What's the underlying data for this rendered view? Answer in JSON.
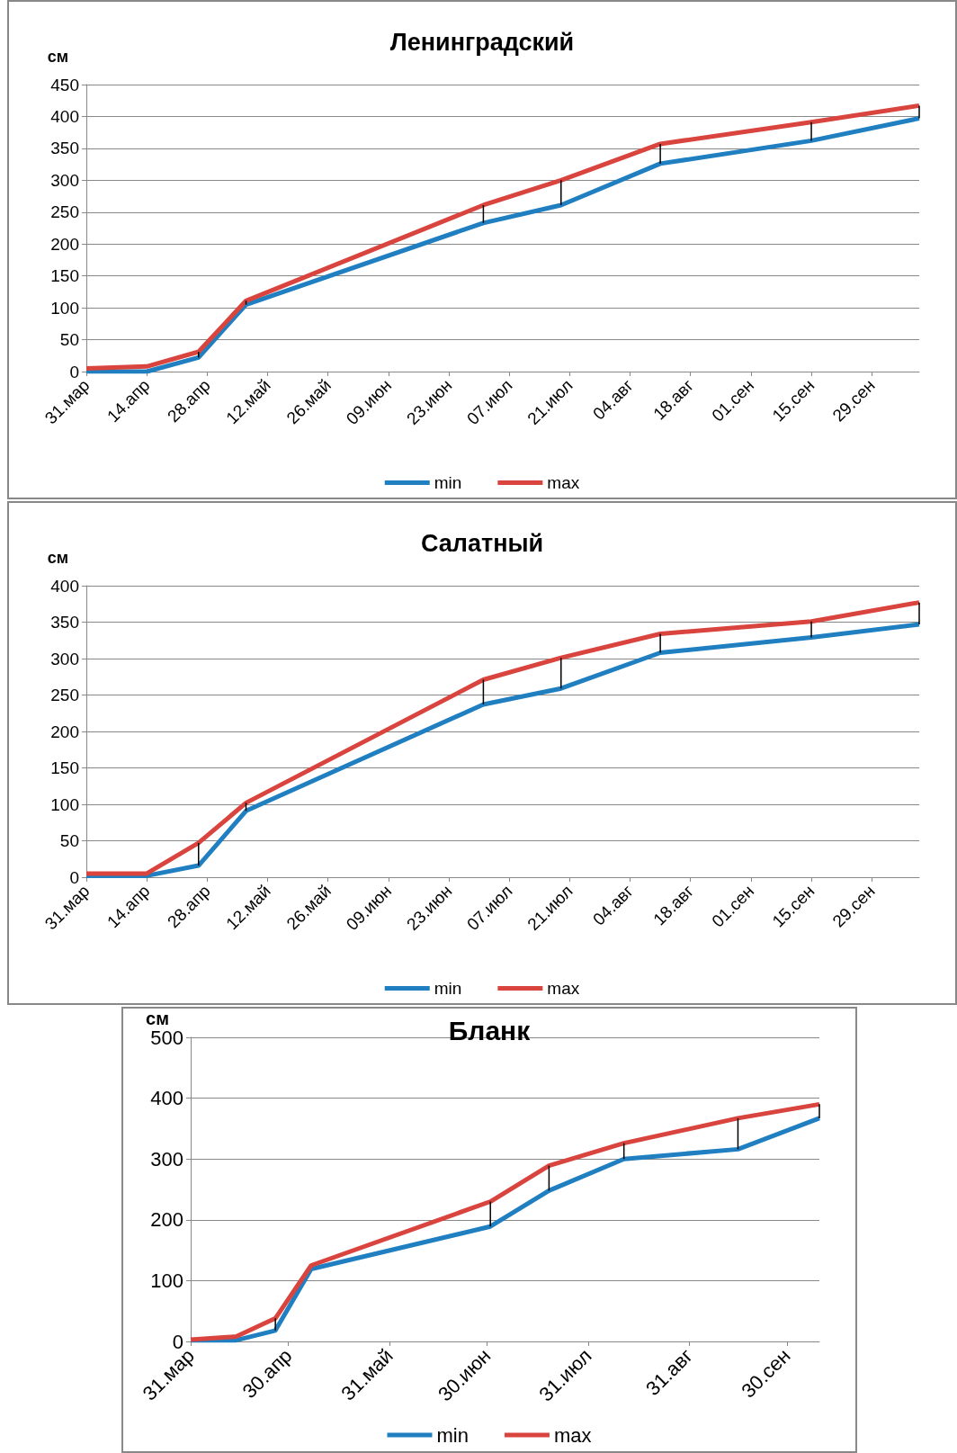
{
  "chart_data": [
    {
      "type": "line",
      "title": "Ленинградский",
      "ylabel": "см",
      "x": [
        "--03-31",
        "--04-14",
        "--04-26",
        "--05-07",
        "--07-01",
        "--07-19",
        "--08-11",
        "--09-15",
        "--10-10"
      ],
      "series": [
        {
          "name": "min",
          "color": "#1f7fc0",
          "values": [
            0,
            0,
            22,
            105,
            233,
            261,
            326,
            362,
            397
          ],
          "errors": [
            null,
            null,
            [
              22,
              31
            ],
            [
              105,
              111
            ],
            [
              233,
              261
            ],
            [
              261,
              300
            ],
            [
              326,
              357
            ],
            [
              362,
              391
            ],
            [
              397,
              417
            ]
          ]
        },
        {
          "name": "max",
          "color": "#d9453e",
          "values": [
            5,
            8,
            31,
            111,
            261,
            300,
            357,
            391,
            417
          ]
        }
      ],
      "xlim": [
        "--03-31",
        "--10-10"
      ],
      "xticks": [
        {
          "value": "--03-31",
          "label": "31.мар"
        },
        {
          "value": "--04-14",
          "label": "14.апр"
        },
        {
          "value": "--04-28",
          "label": "28.апр"
        },
        {
          "value": "--05-12",
          "label": "12.май"
        },
        {
          "value": "--05-26",
          "label": "26.май"
        },
        {
          "value": "--06-09",
          "label": "09.июн"
        },
        {
          "value": "--06-23",
          "label": "23.июн"
        },
        {
          "value": "--07-07",
          "label": "07.июл"
        },
        {
          "value": "--07-21",
          "label": "21.июл"
        },
        {
          "value": "--08-04",
          "label": "04.авг"
        },
        {
          "value": "--08-18",
          "label": "18.авг"
        },
        {
          "value": "--09-01",
          "label": "01.сен"
        },
        {
          "value": "--09-15",
          "label": "15.сен"
        },
        {
          "value": "--09-29",
          "label": "29.сен"
        }
      ],
      "ylim": [
        0,
        450
      ],
      "yticks": [
        0,
        50,
        100,
        150,
        200,
        250,
        300,
        350,
        400,
        450
      ],
      "grid": "y",
      "legend": "bottom",
      "marker": "none",
      "line_style": "solid"
    },
    {
      "type": "line",
      "title": "Салатный",
      "ylabel": "см",
      "x": [
        "--03-31",
        "--04-14",
        "--04-26",
        "--05-07",
        "--07-01",
        "--07-19",
        "--08-11",
        "--09-15",
        "--10-10"
      ],
      "series": [
        {
          "name": "min",
          "color": "#1f7fc0",
          "values": [
            2,
            2,
            16,
            91,
            237,
            259,
            308,
            329,
            347
          ],
          "errors": [
            null,
            null,
            [
              16,
              47
            ],
            [
              91,
              102
            ],
            [
              237,
              271
            ],
            [
              259,
              301
            ],
            [
              308,
              334
            ],
            [
              329,
              351
            ],
            [
              347,
              377
            ]
          ]
        },
        {
          "name": "max",
          "color": "#d9453e",
          "values": [
            5,
            5,
            47,
            102,
            271,
            301,
            334,
            351,
            377
          ]
        }
      ],
      "xlim": [
        "--03-31",
        "--10-10"
      ],
      "xticks": [
        {
          "value": "--03-31",
          "label": "31.мар"
        },
        {
          "value": "--04-14",
          "label": "14.апр"
        },
        {
          "value": "--04-28",
          "label": "28.апр"
        },
        {
          "value": "--05-12",
          "label": "12.май"
        },
        {
          "value": "--05-26",
          "label": "26.май"
        },
        {
          "value": "--06-09",
          "label": "09.июн"
        },
        {
          "value": "--06-23",
          "label": "23.июн"
        },
        {
          "value": "--07-07",
          "label": "07.июл"
        },
        {
          "value": "--07-21",
          "label": "21.июл"
        },
        {
          "value": "--08-04",
          "label": "04.авг"
        },
        {
          "value": "--08-18",
          "label": "18.авг"
        },
        {
          "value": "--09-01",
          "label": "01.сен"
        },
        {
          "value": "--09-15",
          "label": "15.сен"
        },
        {
          "value": "--09-29",
          "label": "29.сен"
        }
      ],
      "ylim": [
        0,
        400
      ],
      "yticks": [
        0,
        50,
        100,
        150,
        200,
        250,
        300,
        350,
        400
      ],
      "grid": "y",
      "legend": "bottom",
      "marker": "none",
      "line_style": "solid"
    },
    {
      "type": "line",
      "title": "Бланк",
      "ylabel": "см",
      "x": [
        "--03-31",
        "--04-14",
        "--04-26",
        "--05-07",
        "--07-01",
        "--07-19",
        "--08-11",
        "--09-15",
        "--10-10"
      ],
      "series": [
        {
          "name": "min",
          "color": "#1f7fc0",
          "values": [
            2,
            2,
            18,
            119,
            189,
            248,
            300,
            316,
            367
          ],
          "errors": [
            null,
            null,
            [
              18,
              38
            ],
            null,
            [
              189,
              230
            ],
            [
              248,
              289
            ],
            [
              300,
              326
            ],
            [
              316,
              367
            ],
            [
              367,
              390
            ]
          ]
        },
        {
          "name": "max",
          "color": "#d9453e",
          "values": [
            3,
            8,
            38,
            125,
            230,
            289,
            326,
            367,
            390
          ]
        }
      ],
      "xlim": [
        "--03-31",
        "--10-10"
      ],
      "xticks": [
        {
          "value": "--03-31",
          "label": "31.мар"
        },
        {
          "value": "--04-30",
          "label": "30.апр"
        },
        {
          "value": "--05-31",
          "label": "31.май"
        },
        {
          "value": "--06-30",
          "label": "30.июн"
        },
        {
          "value": "--07-31",
          "label": "31.июл"
        },
        {
          "value": "--08-31",
          "label": "31.авг"
        },
        {
          "value": "--09-30",
          "label": "30.сен"
        }
      ],
      "ylim": [
        0,
        500
      ],
      "yticks": [
        0,
        100,
        200,
        300,
        400,
        500
      ],
      "grid": "y",
      "legend": "bottom",
      "marker": "none",
      "line_style": "solid"
    }
  ]
}
